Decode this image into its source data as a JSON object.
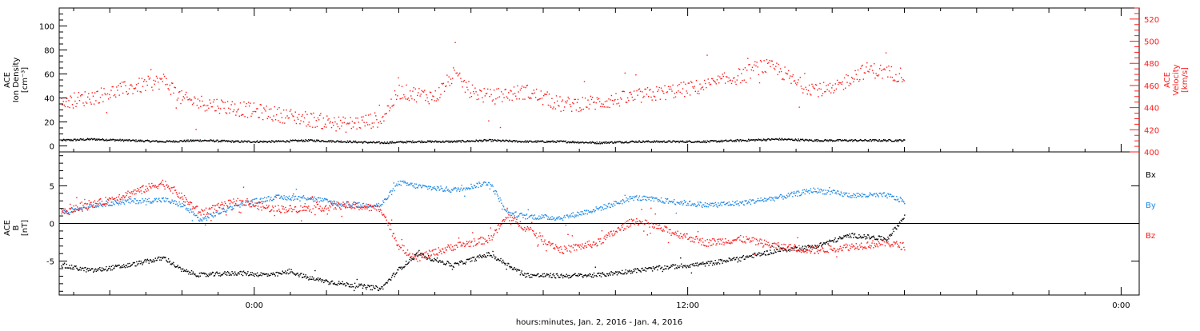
{
  "colors": {
    "axis": "#000000",
    "density": "#000000",
    "velocity": "#ff1a1a",
    "bx": "#000000",
    "by": "#1e88e5",
    "bz": "#ff1a1a"
  },
  "xaxis": {
    "title": "hours:minutes, Jan.  2, 2016 - Jan.  4, 2016",
    "ticks": [
      {
        "h": 0,
        "label": "0:00"
      },
      {
        "h": 12,
        "label": "12:00"
      },
      {
        "h": 24,
        "label": "0:00"
      }
    ],
    "range_hours": [
      -5.4,
      24.5
    ],
    "data_end_hours": 18.0
  },
  "chart_data": [
    {
      "type": "scatter",
      "panel": "top",
      "ylabel_left": [
        "ACE",
        "Ion Density",
        "[cm⁻³]"
      ],
      "ylabel_right": [
        "ACE",
        "Velocity",
        "[km/s]"
      ],
      "ylim_left": [
        -5,
        115
      ],
      "yticks_left": [
        0,
        20,
        40,
        60,
        80,
        100
      ],
      "ylim_right": [
        400,
        530
      ],
      "yticks_right": [
        400,
        420,
        440,
        460,
        480,
        500,
        520
      ],
      "series": [
        {
          "key": "density",
          "x": [
            -5.4,
            -4.5,
            -3.5,
            -2.5,
            -1.5,
            -0.5,
            0.5,
            1.5,
            2.5,
            3.5,
            4.5,
            5.5,
            6.5,
            7.5,
            8.5,
            9.5,
            10.5,
            11.5,
            12.5,
            13.5,
            14.5,
            15.5,
            16.5,
            17.5,
            18.0
          ],
          "y": [
            5,
            6,
            5,
            4,
            5,
            4,
            4,
            5,
            4,
            3,
            4,
            4,
            5,
            4,
            4,
            3,
            4,
            4,
            4,
            5,
            6,
            5,
            5,
            5,
            5
          ]
        },
        {
          "key": "velocity",
          "x": [
            -5.4,
            -4.5,
            -3.5,
            -2.5,
            -2.0,
            -1.5,
            -0.5,
            0.5,
            1.5,
            2.5,
            3.5,
            4.0,
            5.0,
            5.5,
            6.0,
            6.5,
            7.5,
            8.5,
            9.5,
            10.5,
            11.5,
            12.5,
            13.5,
            14.0,
            14.5,
            15.0,
            15.5,
            16.0,
            16.5,
            17.0,
            17.5,
            18.0
          ],
          "y": [
            445,
            450,
            458,
            465,
            448,
            445,
            440,
            435,
            430,
            425,
            430,
            455,
            450,
            470,
            455,
            450,
            455,
            443,
            445,
            450,
            455,
            460,
            470,
            478,
            475,
            462,
            458,
            455,
            468,
            475,
            472,
            470
          ]
        }
      ]
    },
    {
      "type": "scatter",
      "panel": "bottom",
      "ylabel_left": [
        "ACE",
        "B",
        "[nT]"
      ],
      "ylim": [
        -9.5,
        9.5
      ],
      "yticks": [
        -5,
        0,
        5
      ],
      "legend": [
        {
          "key": "bx",
          "label": "Bx"
        },
        {
          "key": "by",
          "label": "By"
        },
        {
          "key": "bz",
          "label": "Bz"
        }
      ],
      "series": [
        {
          "key": "bx",
          "x": [
            -5.4,
            -4.5,
            -3.5,
            -2.5,
            -2.0,
            -1.5,
            -0.5,
            0.5,
            1.0,
            1.5,
            2.5,
            3.5,
            4.0,
            4.5,
            5.5,
            6.5,
            7.5,
            8.5,
            9.5,
            10.5,
            11.5,
            12.5,
            13.5,
            14.5,
            15.5,
            16.5,
            17.5,
            18.0
          ],
          "y": [
            -5.5,
            -6.2,
            -5.5,
            -4.5,
            -6.2,
            -6.8,
            -6.5,
            -6.8,
            -6.3,
            -7.2,
            -8.0,
            -8.6,
            -6.0,
            -4.0,
            -5.5,
            -4.0,
            -6.8,
            -6.9,
            -6.8,
            -6.2,
            -5.7,
            -5.3,
            -4.5,
            -3.5,
            -3.0,
            -1.5,
            -2.0,
            1.0
          ]
        },
        {
          "key": "by",
          "x": [
            -5.4,
            -4.5,
            -3.5,
            -2.5,
            -2.0,
            -1.5,
            -0.5,
            0.5,
            1.5,
            2.5,
            3.5,
            4.0,
            4.5,
            5.5,
            6.5,
            7.0,
            7.5,
            8.5,
            9.5,
            10.5,
            11.5,
            12.5,
            13.5,
            14.5,
            15.5,
            16.5,
            17.5,
            18.0
          ],
          "y": [
            1.5,
            2.5,
            3.0,
            3.2,
            2.5,
            0.5,
            2.5,
            3.5,
            3.5,
            2.5,
            2.5,
            5.5,
            5.0,
            4.5,
            5.5,
            1.5,
            1.0,
            0.8,
            2.0,
            3.5,
            3.0,
            2.5,
            2.8,
            3.5,
            4.5,
            3.8,
            3.8,
            3.0
          ]
        },
        {
          "key": "bz",
          "x": [
            -5.4,
            -4.5,
            -3.5,
            -2.5,
            -2.0,
            -1.5,
            -0.5,
            0.5,
            1.5,
            2.5,
            3.5,
            4.0,
            4.5,
            5.5,
            6.5,
            7.0,
            7.5,
            8.5,
            9.5,
            10.5,
            11.5,
            12.5,
            13.5,
            14.5,
            15.5,
            16.5,
            17.5,
            18.0
          ],
          "y": [
            1.5,
            2.5,
            4.0,
            5.5,
            3.5,
            1.5,
            3.0,
            2.0,
            2.0,
            2.5,
            2.0,
            -3.0,
            -4.5,
            -3.0,
            -2.0,
            1.0,
            -0.5,
            -3.5,
            -2.5,
            0.5,
            -1.0,
            -2.5,
            -2.0,
            -3.0,
            -3.5,
            -3.0,
            -2.5,
            -3.0
          ]
        }
      ]
    }
  ]
}
